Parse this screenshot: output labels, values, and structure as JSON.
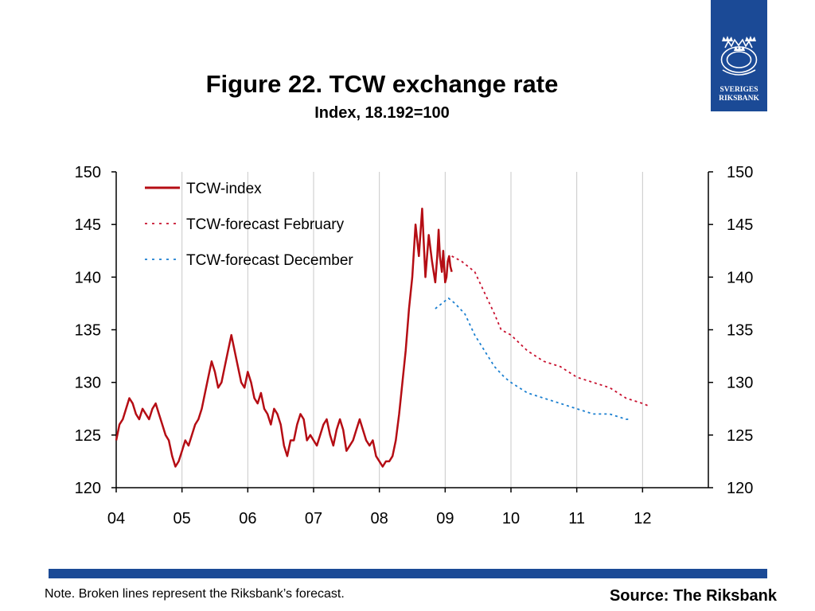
{
  "logo": {
    "line1": "SVERIGES",
    "line2": "RIKSBANK",
    "color": "#1b4a96"
  },
  "footer": {
    "note": "Note. Broken lines represent the Riksbank’s forecast.",
    "source": "Source: The Riksbank",
    "bar_color": "#1b4a96"
  },
  "chart_data": {
    "type": "line",
    "title": "Figure 22. TCW exchange rate",
    "subtitle": "Index, 18.192=100",
    "x_ticks": [
      "04",
      "05",
      "06",
      "07",
      "08",
      "09",
      "10",
      "11",
      "12"
    ],
    "xlim": [
      2004,
      2013
    ],
    "ylim": [
      120,
      150
    ],
    "y_ticks": [
      120,
      125,
      130,
      135,
      140,
      145,
      150
    ],
    "grid": "vertical",
    "legend_position": "top-left",
    "series": [
      {
        "name": "TCW-index",
        "style": "solid",
        "color": "#b50d14",
        "x": [
          2004.0,
          2004.05,
          2004.1,
          2004.15,
          2004.2,
          2004.25,
          2004.3,
          2004.35,
          2004.4,
          2004.45,
          2004.5,
          2004.55,
          2004.6,
          2004.65,
          2004.7,
          2004.75,
          2004.8,
          2004.85,
          2004.9,
          2004.95,
          2005.0,
          2005.05,
          2005.1,
          2005.15,
          2005.2,
          2005.25,
          2005.3,
          2005.35,
          2005.4,
          2005.45,
          2005.5,
          2005.55,
          2005.6,
          2005.65,
          2005.7,
          2005.75,
          2005.8,
          2005.85,
          2005.9,
          2005.95,
          2006.0,
          2006.05,
          2006.1,
          2006.15,
          2006.2,
          2006.25,
          2006.3,
          2006.35,
          2006.4,
          2006.45,
          2006.5,
          2006.55,
          2006.6,
          2006.65,
          2006.7,
          2006.75,
          2006.8,
          2006.85,
          2006.9,
          2006.95,
          2007.0,
          2007.05,
          2007.1,
          2007.15,
          2007.2,
          2007.25,
          2007.3,
          2007.35,
          2007.4,
          2007.45,
          2007.5,
          2007.55,
          2007.6,
          2007.65,
          2007.7,
          2007.75,
          2007.8,
          2007.85,
          2007.9,
          2007.95,
          2008.0,
          2008.05,
          2008.1,
          2008.15,
          2008.2,
          2008.25,
          2008.3,
          2008.35,
          2008.4,
          2008.45,
          2008.5,
          2008.55,
          2008.6,
          2008.65,
          2008.7,
          2008.75,
          2008.8,
          2008.85,
          2008.88,
          2008.9,
          2008.92,
          2008.95,
          2008.97,
          2009.0,
          2009.02,
          2009.04,
          2009.06,
          2009.08,
          2009.1
        ],
        "values": [
          124.5,
          126.0,
          126.5,
          127.5,
          128.5,
          128.0,
          127.0,
          126.5,
          127.5,
          127.0,
          126.5,
          127.5,
          128.0,
          127.0,
          126.0,
          125.0,
          124.5,
          123.0,
          122.0,
          122.5,
          123.5,
          124.5,
          124.0,
          125.0,
          126.0,
          126.5,
          127.5,
          129.0,
          130.5,
          132.0,
          131.0,
          129.5,
          130.0,
          131.5,
          133.0,
          134.5,
          133.0,
          131.5,
          130.0,
          129.5,
          131.0,
          130.0,
          128.5,
          128.0,
          129.0,
          127.5,
          127.0,
          126.0,
          127.5,
          127.0,
          126.0,
          124.0,
          123.0,
          124.5,
          124.5,
          126.0,
          127.0,
          126.5,
          124.5,
          125.0,
          124.5,
          124.0,
          125.0,
          126.0,
          126.5,
          125.0,
          124.0,
          125.5,
          126.5,
          125.5,
          123.5,
          124.0,
          124.5,
          125.5,
          126.5,
          125.5,
          124.5,
          124.0,
          124.5,
          123.0,
          122.5,
          122.0,
          122.5,
          122.5,
          123.0,
          124.5,
          127.0,
          130.0,
          133.0,
          137.0,
          140.0,
          145.0,
          142.0,
          146.5,
          140.0,
          144.0,
          141.5,
          139.5,
          142.0,
          144.5,
          142.0,
          140.5,
          142.5,
          139.5,
          140.0,
          141.5,
          142.0,
          141.0,
          140.5
        ]
      },
      {
        "name": "TCW-forecast February",
        "style": "dotted",
        "color": "#c8102e",
        "x": [
          2009.1,
          2009.25,
          2009.45,
          2009.6,
          2009.75,
          2009.85,
          2010.0,
          2010.25,
          2010.5,
          2010.75,
          2011.0,
          2011.25,
          2011.5,
          2011.75,
          2012.0,
          2012.08
        ],
        "values": [
          142.0,
          141.5,
          140.5,
          138.5,
          136.5,
          135.0,
          134.5,
          133.0,
          132.0,
          131.5,
          130.5,
          130.0,
          129.5,
          128.5,
          128.0,
          127.8
        ]
      },
      {
        "name": "TCW-forecast December",
        "style": "dotted",
        "color": "#1a7fd0",
        "x": [
          2008.85,
          2008.95,
          2009.05,
          2009.15,
          2009.3,
          2009.45,
          2009.6,
          2009.75,
          2009.9,
          2010.0,
          2010.25,
          2010.5,
          2010.75,
          2011.0,
          2011.25,
          2011.5,
          2011.75,
          2011.8
        ],
        "values": [
          137.0,
          137.5,
          138.0,
          137.5,
          136.5,
          134.5,
          133.0,
          131.5,
          130.5,
          130.0,
          129.0,
          128.5,
          128.0,
          127.5,
          127.0,
          127.0,
          126.5,
          126.5
        ]
      }
    ]
  }
}
